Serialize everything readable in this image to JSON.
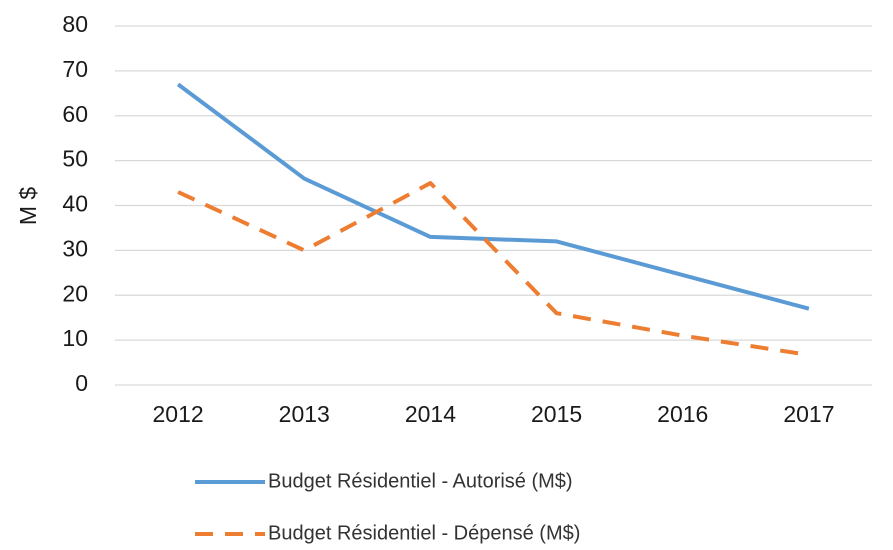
{
  "chart_data": {
    "type": "line",
    "y_label": "M $",
    "categories": [
      "2012",
      "2013",
      "2014",
      "2015",
      "2016",
      "2017"
    ],
    "series": [
      {
        "name": "Budget Résidentiel - Autorisé (M$)",
        "color": "#5b9bd5",
        "dash": false,
        "values": [
          67,
          46,
          33,
          32,
          24.5,
          17
        ]
      },
      {
        "name": "Budget Résidentiel - Dépensé (M$)",
        "color": "#ed7d31",
        "dash": true,
        "values": [
          43,
          30,
          45,
          16,
          11,
          6.7
        ]
      }
    ],
    "ylim": [
      0,
      80
    ],
    "yticks": [
      0,
      10,
      20,
      30,
      40,
      50,
      60,
      70,
      80
    ],
    "grid": true,
    "legend": "bottom"
  }
}
